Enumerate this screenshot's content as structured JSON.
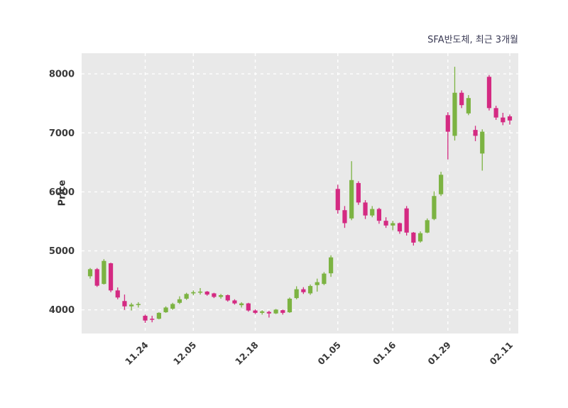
{
  "chart_data": {
    "type": "candlestick",
    "title": "SFA반도체, 최근 3개월",
    "ylabel": "Price",
    "xlabel": "",
    "ylim": [
      3600,
      8350
    ],
    "yticks": [
      4000,
      5000,
      6000,
      7000,
      8000
    ],
    "xticks": [
      {
        "i": 8,
        "label": "11.24"
      },
      {
        "i": 15,
        "label": "12.05"
      },
      {
        "i": 24,
        "label": "12.18"
      },
      {
        "i": 36,
        "label": "01.05"
      },
      {
        "i": 44,
        "label": "01.16"
      },
      {
        "i": 52,
        "label": "01.29"
      },
      {
        "i": 61,
        "label": "02.11"
      }
    ],
    "colors": {
      "up": "#7cb342",
      "down": "#d42a82",
      "plot_bg": "#e9e9e9",
      "grid": "#ffffff",
      "tick_label": "#3a3a3a",
      "title": "#3a3a54"
    },
    "grid": "dashed",
    "legend": "none",
    "candles_ohlc": [
      [
        4570,
        4710,
        4530,
        4690
      ],
      [
        4690,
        4710,
        4390,
        4410
      ],
      [
        4440,
        4860,
        4430,
        4830
      ],
      [
        4790,
        4800,
        4300,
        4330
      ],
      [
        4330,
        4380,
        4180,
        4210
      ],
      [
        4150,
        4260,
        4000,
        4060
      ],
      [
        4060,
        4120,
        3990,
        4090
      ],
      [
        4090,
        4130,
        4040,
        4100
      ],
      [
        3900,
        3920,
        3780,
        3820
      ],
      [
        3850,
        3900,
        3790,
        3840
      ],
      [
        3850,
        3960,
        3840,
        3950
      ],
      [
        3960,
        4060,
        3950,
        4040
      ],
      [
        4020,
        4120,
        4000,
        4100
      ],
      [
        4120,
        4230,
        4100,
        4180
      ],
      [
        4190,
        4290,
        4170,
        4270
      ],
      [
        4280,
        4330,
        4250,
        4300
      ],
      [
        4300,
        4370,
        4260,
        4310
      ],
      [
        4310,
        4320,
        4240,
        4260
      ],
      [
        4280,
        4290,
        4200,
        4220
      ],
      [
        4220,
        4270,
        4190,
        4250
      ],
      [
        4250,
        4260,
        4140,
        4160
      ],
      [
        4160,
        4180,
        4090,
        4110
      ],
      [
        4080,
        4130,
        4040,
        4110
      ],
      [
        4110,
        4120,
        3970,
        3990
      ],
      [
        3990,
        4010,
        3930,
        3950
      ],
      [
        3950,
        3995,
        3920,
        3975
      ],
      [
        3965,
        3985,
        3870,
        3940
      ],
      [
        3940,
        4015,
        3930,
        4005
      ],
      [
        3995,
        4005,
        3920,
        3950
      ],
      [
        3960,
        4210,
        3950,
        4190
      ],
      [
        4200,
        4400,
        4180,
        4350
      ],
      [
        4350,
        4385,
        4270,
        4300
      ],
      [
        4280,
        4430,
        4255,
        4405
      ],
      [
        4420,
        4530,
        4310,
        4470
      ],
      [
        4440,
        4640,
        4420,
        4615
      ],
      [
        4620,
        4925,
        4560,
        4890
      ],
      [
        6050,
        6120,
        5630,
        5690
      ],
      [
        5690,
        5760,
        5390,
        5470
      ],
      [
        5550,
        6520,
        5520,
        6200
      ],
      [
        6150,
        6180,
        5780,
        5820
      ],
      [
        5820,
        5860,
        5540,
        5600
      ],
      [
        5600,
        5760,
        5570,
        5710
      ],
      [
        5710,
        5730,
        5460,
        5510
      ],
      [
        5510,
        5570,
        5390,
        5430
      ],
      [
        5430,
        5510,
        5350,
        5470
      ],
      [
        5470,
        5480,
        5290,
        5330
      ],
      [
        5720,
        5760,
        5260,
        5310
      ],
      [
        5310,
        5320,
        5090,
        5140
      ],
      [
        5160,
        5330,
        5140,
        5300
      ],
      [
        5310,
        5550,
        5300,
        5520
      ],
      [
        5540,
        6010,
        5520,
        5930
      ],
      [
        5960,
        6340,
        5930,
        6290
      ],
      [
        7300,
        7350,
        6550,
        7020
      ],
      [
        6950,
        8120,
        6870,
        7680
      ],
      [
        7680,
        7720,
        7420,
        7470
      ],
      [
        7330,
        7640,
        7300,
        7590
      ],
      [
        7050,
        7120,
        6860,
        6950
      ],
      [
        6650,
        7060,
        6360,
        7020
      ],
      [
        7950,
        7980,
        7380,
        7420
      ],
      [
        7420,
        7460,
        7220,
        7260
      ],
      [
        7260,
        7340,
        7130,
        7180
      ],
      [
        7280,
        7310,
        7140,
        7210
      ]
    ]
  }
}
